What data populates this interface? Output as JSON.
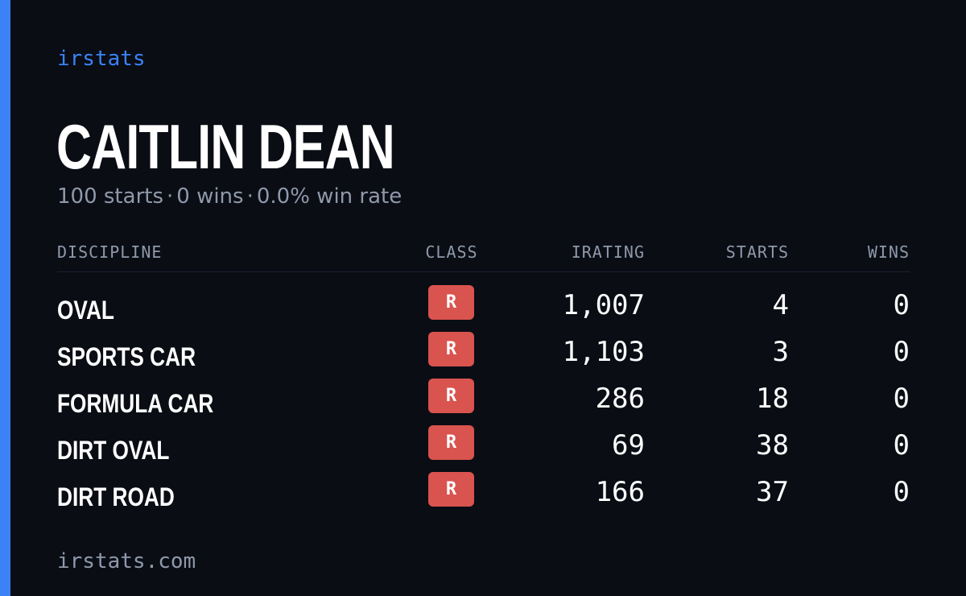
{
  "brand": "irstats",
  "player": {
    "name": "CAITLIN DEAN",
    "summary": {
      "starts": "100 starts",
      "wins": "0 wins",
      "win_rate": "0.0% win rate",
      "separator": "·"
    }
  },
  "table": {
    "headers": {
      "discipline": "DISCIPLINE",
      "class": "CLASS",
      "irating": "IRATING",
      "starts": "STARTS",
      "wins": "WINS"
    },
    "rows": [
      {
        "discipline": "OVAL",
        "class": "R",
        "irating": "1,007",
        "starts": "4",
        "wins": "0"
      },
      {
        "discipline": "SPORTS CAR",
        "class": "R",
        "irating": "1,103",
        "starts": "3",
        "wins": "0"
      },
      {
        "discipline": "FORMULA CAR",
        "class": "R",
        "irating": "286",
        "starts": "18",
        "wins": "0"
      },
      {
        "discipline": "DIRT OVAL",
        "class": "R",
        "irating": "69",
        "starts": "38",
        "wins": "0"
      },
      {
        "discipline": "DIRT ROAD",
        "class": "R",
        "irating": "166",
        "starts": "37",
        "wins": "0"
      }
    ]
  },
  "footer": {
    "url": "irstats.com"
  },
  "colors": {
    "background": "#0a0d14",
    "accent": "#3b82f6",
    "muted_text": "#8f99ab",
    "class_r_badge": "#d9534f"
  }
}
